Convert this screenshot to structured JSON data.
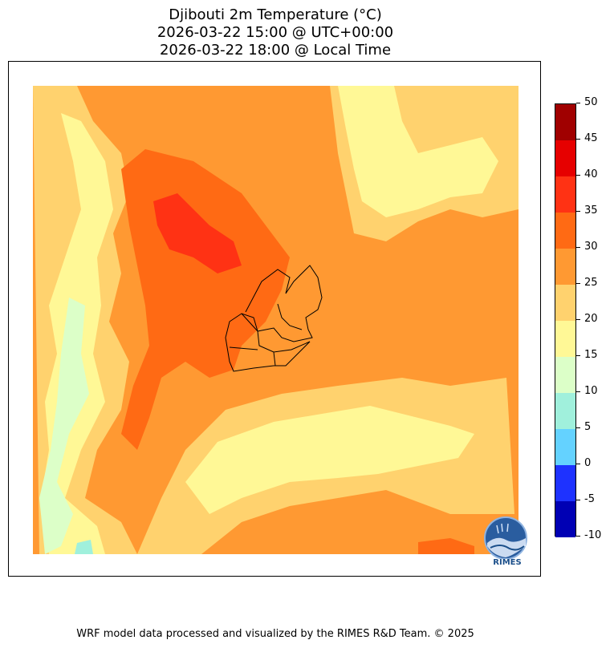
{
  "title": {
    "line1": "Djibouti 2m Temperature (°C)",
    "line2": "2026-03-22 15:00 @ UTC+00:00",
    "line3": "2026-03-22 18:00 @ Local Time"
  },
  "colorbar": {
    "levels": [
      -10,
      -5,
      0,
      5,
      10,
      15,
      20,
      25,
      30,
      35,
      40,
      45,
      50
    ],
    "labels": [
      "-10",
      "-5",
      "0",
      "5",
      "10",
      "15",
      "20",
      "25",
      "30",
      "35",
      "40",
      "45",
      "50"
    ],
    "colors": [
      "#0000b4",
      "#1e32ff",
      "#64d2ff",
      "#a0f0dc",
      "#dcffc8",
      "#fff896",
      "#ffd26e",
      "#ff9932",
      "#ff6a14",
      "#ff3214",
      "#e60000",
      "#a00000"
    ]
  },
  "logo": {
    "text": "RIMES"
  },
  "footer": "WRF model data processed and visualized by the RIMES R&D Team. © 2025"
}
